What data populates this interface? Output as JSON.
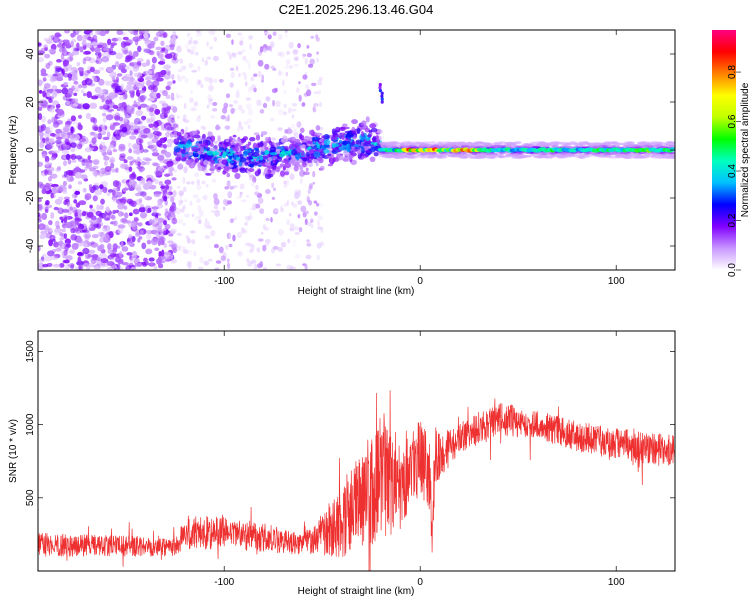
{
  "title": "C2E1.2025.296.13.46.G04",
  "chart_data": [
    {
      "type": "heatmap",
      "xlabel": "Height of straight line (km)",
      "ylabel": "Frequency (Hz)",
      "xlim": [
        -195,
        130
      ],
      "ylim": [
        -50,
        50
      ],
      "xticks": [
        -100,
        0,
        100
      ],
      "yticks": [
        -40,
        -20,
        0,
        20,
        40
      ],
      "colorbar": {
        "label": "Normalized spectral amplitude",
        "range": [
          0,
          0.97
        ],
        "ticks": [
          0.0,
          0.2,
          0.4,
          0.6,
          0.8
        ],
        "colormap": [
          "#ffffff",
          "#c896ff",
          "#8000ff",
          "#0000ff",
          "#00c0ff",
          "#00ffc0",
          "#00ff00",
          "#c0ff00",
          "#ffff00",
          "#ff8000",
          "#ff0000",
          "#ff0080"
        ]
      },
      "regions": [
        {
          "name": "scattered noise",
          "x": [
            -195,
            -125
          ],
          "freq": [
            -50,
            50
          ],
          "amplitude": 0.1
        },
        {
          "name": "sparse noise",
          "x": [
            -125,
            -50
          ],
          "freq": [
            -50,
            50
          ],
          "amplitude": 0.05
        },
        {
          "name": "broadened line",
          "x": [
            -125,
            -20
          ],
          "freq": [
            -8,
            8
          ],
          "amplitude": 0.3
        },
        {
          "name": "tone line",
          "x": [
            -20,
            130
          ],
          "freq": [
            -2,
            2
          ],
          "amplitude": 0.55
        },
        {
          "name": "spike",
          "x": [
            -20,
            -20
          ],
          "freq": [
            20,
            28
          ],
          "amplitude": 0.15
        }
      ]
    },
    {
      "type": "line",
      "xlabel": "Height of straight line (km)",
      "ylabel": "SNR (10 * v/v)",
      "xlim": [
        -195,
        130
      ],
      "ylim": [
        0,
        1640
      ],
      "xticks": [
        -100,
        0,
        100
      ],
      "yticks": [
        500,
        1000,
        1500
      ],
      "color": "#ee3030",
      "envelope": {
        "x": [
          -195,
          -150,
          -125,
          -120,
          -100,
          -80,
          -60,
          -50,
          -40,
          -30,
          -20,
          -10,
          -5,
          0,
          5,
          6,
          7,
          8,
          10,
          20,
          30,
          40,
          50,
          60,
          80,
          100,
          115,
          130
        ],
        "mean": [
          180,
          170,
          170,
          260,
          260,
          230,
          180,
          250,
          350,
          480,
          650,
          620,
          720,
          780,
          650,
          200,
          600,
          800,
          780,
          900,
          980,
          1040,
          1020,
          1000,
          920,
          870,
          840,
          820
        ],
        "spread": [
          80,
          70,
          70,
          120,
          110,
          100,
          70,
          140,
          260,
          350,
          450,
          330,
          280,
          260,
          250,
          120,
          200,
          200,
          150,
          110,
          110,
          110,
          110,
          100,
          100,
          110,
          110,
          110
        ]
      }
    }
  ]
}
